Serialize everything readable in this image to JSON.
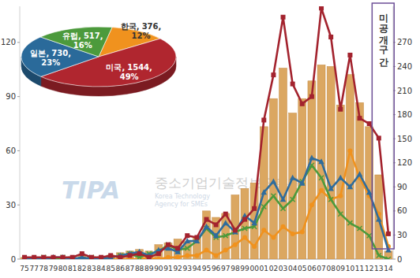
{
  "chart_data": [
    {
      "type": "bar",
      "categories": [
        "75",
        "77",
        "78",
        "79",
        "80",
        "81",
        "82",
        "83",
        "84",
        "85",
        "86",
        "87",
        "88",
        "89",
        "90",
        "91",
        "92",
        "93",
        "94",
        "95",
        "96",
        "97",
        "98",
        "99",
        "00",
        "01",
        "02",
        "03",
        "04",
        "05",
        "06",
        "07",
        "08",
        "09",
        "10",
        "11",
        "12",
        "13",
        "14"
      ],
      "series": [
        {
          "type": "bar",
          "axis": "y2",
          "color": "#dba761",
          "values": [
            2,
            2,
            2,
            2,
            2,
            3,
            5,
            3,
            3,
            5,
            8,
            10,
            12,
            10,
            18,
            20,
            25,
            22,
            28,
            60,
            52,
            57,
            80,
            88,
            95,
            165,
            200,
            238,
            182,
            200,
            222,
            242,
            240,
            192,
            230,
            195,
            165,
            105,
            10
          ]
        },
        {
          "type": "line",
          "color": "#a3232e",
          "marker": "square",
          "values": [
            1,
            1,
            1,
            1,
            1,
            1,
            3,
            1,
            1,
            2,
            1,
            2,
            3,
            1,
            3,
            8,
            6,
            13,
            12,
            22,
            19,
            25,
            16,
            22,
            28,
            77,
            102,
            134,
            97,
            86,
            90,
            139,
            123,
            83,
            113,
            78,
            75,
            67,
            14
          ]
        },
        {
          "type": "line",
          "color": "#2f6c9c",
          "marker": "triangle",
          "values": [
            0,
            0,
            0,
            1,
            1,
            0,
            1,
            0,
            0,
            1,
            2,
            3,
            4,
            2,
            5,
            6,
            4,
            10,
            10,
            18,
            13,
            20,
            15,
            24,
            20,
            37,
            43,
            33,
            45,
            42,
            56,
            54,
            39,
            45,
            40,
            47,
            37,
            22,
            5
          ]
        },
        {
          "type": "line",
          "color": "#4c9a3c",
          "marker": "x",
          "values": [
            0,
            0,
            1,
            0,
            1,
            0,
            0,
            1,
            0,
            1,
            2,
            3,
            1,
            3,
            4,
            8,
            5,
            6,
            10,
            17,
            12,
            13,
            15,
            17,
            18,
            29,
            35,
            28,
            33,
            43,
            52,
            45,
            33,
            25,
            20,
            17,
            13,
            2,
            0
          ]
        },
        {
          "type": "line",
          "color": "#f0921e",
          "marker": "circle",
          "values": [
            0,
            0,
            0,
            0,
            0,
            0,
            0,
            0,
            0,
            0,
            0,
            0,
            0,
            1,
            0,
            1,
            1,
            2,
            2,
            5,
            2,
            5,
            8,
            12,
            7,
            16,
            12,
            18,
            14,
            15,
            30,
            38,
            33,
            35,
            60,
            45,
            35,
            25,
            7
          ]
        }
      ],
      "ylim": [
        0,
        140
      ],
      "yticks": [
        0,
        30,
        60,
        90,
        120
      ],
      "y2lim": [
        0,
        315
      ],
      "y2ticks": [
        0,
        30,
        60,
        90,
        120,
        150,
        180,
        210,
        240,
        270
      ],
      "grid": false,
      "annotations": [
        "미공개구간",
        "TIPA",
        "중소기업기술정보진흥원",
        "Korea Technology",
        "Agency for SMEs"
      ]
    },
    {
      "type": "pie",
      "categories": [
        "한국,",
        "미국,",
        "일본,",
        "유럽,"
      ],
      "values": [
        376,
        1544,
        730,
        517
      ],
      "value_labels": [
        "376,",
        "1544,",
        "730,",
        "517,"
      ],
      "percentages": [
        12,
        49,
        23,
        16
      ],
      "percent_labels": [
        "12%",
        "49%",
        "23%",
        "16%"
      ],
      "colors": [
        "#f0921e",
        "#b0262f",
        "#2a6a9a",
        "#4c9a3c"
      ],
      "data_labels": true
    }
  ]
}
